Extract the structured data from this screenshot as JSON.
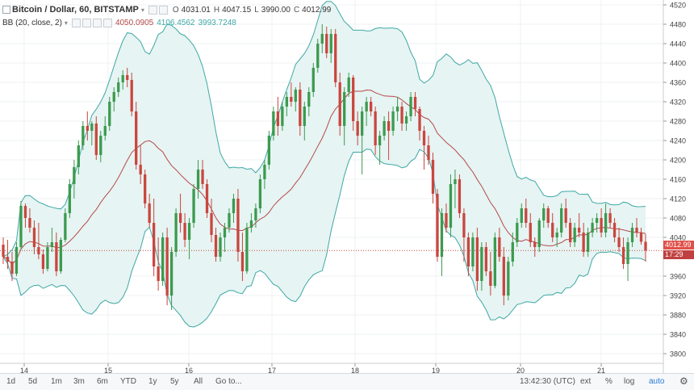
{
  "chart_data": {
    "type": "candlestick",
    "title": "Bitcoin / Dollar, 60, BITSTAMP",
    "ohlc": {
      "o": "4031.01",
      "h": "4047.15",
      "l": "3990.00",
      "c": "4012.99"
    },
    "indicator": {
      "name": "BB (20, close, 2)",
      "values": [
        "4050.0905",
        "4106.4562",
        "3993.7248"
      ]
    },
    "y_ticks": [
      4520,
      4480,
      4440,
      4400,
      4360,
      4320,
      4280,
      4240,
      4200,
      4160,
      4120,
      4080,
      4040,
      3960,
      3920,
      3880,
      3840,
      3800
    ],
    "ylim": [
      3780,
      4530
    ],
    "x_ticks": [
      "14",
      "15",
      "16",
      "17",
      "18",
      "19",
      "20",
      "21"
    ],
    "last_price": "4012.99",
    "countdown": "17:29",
    "candles": [
      [
        4025,
        4040,
        3985,
        4000
      ],
      [
        4000,
        4035,
        3975,
        3990
      ],
      [
        3990,
        4010,
        3950,
        3965
      ],
      [
        3965,
        4030,
        3960,
        4020
      ],
      [
        4020,
        4115,
        4015,
        4105
      ],
      [
        4105,
        4110,
        4060,
        4080
      ],
      [
        4080,
        4100,
        4050,
        4060
      ],
      [
        4060,
        4075,
        4005,
        4020
      ],
      [
        4020,
        4070,
        3995,
        4005
      ],
      [
        4005,
        4015,
        3965,
        3975
      ],
      [
        3975,
        4030,
        3970,
        4020
      ],
      [
        4020,
        4060,
        4010,
        4030
      ],
      [
        4030,
        4050,
        3960,
        3970
      ],
      [
        3970,
        4040,
        3965,
        4035
      ],
      [
        4035,
        4100,
        4030,
        4090
      ],
      [
        4090,
        4160,
        4080,
        4150
      ],
      [
        4150,
        4200,
        4120,
        4185
      ],
      [
        4185,
        4240,
        4170,
        4230
      ],
      [
        4230,
        4280,
        4220,
        4270
      ],
      [
        4270,
        4300,
        4240,
        4260
      ],
      [
        4260,
        4280,
        4230,
        4275
      ],
      [
        4275,
        4290,
        4200,
        4210
      ],
      [
        4210,
        4260,
        4195,
        4250
      ],
      [
        4250,
        4290,
        4240,
        4270
      ],
      [
        4270,
        4330,
        4260,
        4320
      ],
      [
        4320,
        4350,
        4300,
        4340
      ],
      [
        4340,
        4370,
        4330,
        4360
      ],
      [
        4360,
        4385,
        4345,
        4375
      ],
      [
        4375,
        4390,
        4350,
        4365
      ],
      [
        4365,
        4380,
        4290,
        4300
      ],
      [
        4300,
        4320,
        4180,
        4190
      ],
      [
        4190,
        4230,
        4150,
        4170
      ],
      [
        4170,
        4180,
        4100,
        4110
      ],
      [
        4110,
        4130,
        4060,
        4070
      ],
      [
        4070,
        4120,
        3960,
        3980
      ],
      [
        3980,
        4040,
        3930,
        3950
      ],
      [
        3950,
        4050,
        3940,
        4040
      ],
      [
        4040,
        4060,
        3900,
        3920
      ],
      [
        3920,
        4020,
        3890,
        4010
      ],
      [
        4010,
        4100,
        4000,
        4090
      ],
      [
        4090,
        4130,
        4050,
        4070
      ],
      [
        4070,
        4090,
        4020,
        4035
      ],
      [
        4035,
        4080,
        3995,
        4070
      ],
      [
        4070,
        4150,
        4060,
        4140
      ],
      [
        4140,
        4200,
        4120,
        4180
      ],
      [
        4180,
        4200,
        4140,
        4150
      ],
      [
        4150,
        4160,
        4080,
        4090
      ],
      [
        4090,
        4120,
        4030,
        4045
      ],
      [
        4045,
        4060,
        3990,
        4000
      ],
      [
        4000,
        4050,
        3990,
        4040
      ],
      [
        4040,
        4070,
        4010,
        4060
      ],
      [
        4060,
        4100,
        4050,
        4090
      ],
      [
        4090,
        4130,
        4070,
        4120
      ],
      [
        4120,
        4140,
        3990,
        4010
      ],
      [
        4010,
        4050,
        3950,
        3970
      ],
      [
        3970,
        4070,
        3965,
        4060
      ],
      [
        4060,
        4090,
        4050,
        4075
      ],
      [
        4075,
        4110,
        4060,
        4100
      ],
      [
        4100,
        4170,
        4090,
        4160
      ],
      [
        4160,
        4200,
        4140,
        4190
      ],
      [
        4190,
        4260,
        4180,
        4250
      ],
      [
        4250,
        4310,
        4240,
        4300
      ],
      [
        4300,
        4330,
        4250,
        4270
      ],
      [
        4270,
        4320,
        4260,
        4310
      ],
      [
        4310,
        4340,
        4290,
        4330
      ],
      [
        4330,
        4360,
        4310,
        4320
      ],
      [
        4320,
        4350,
        4300,
        4345
      ],
      [
        4345,
        4360,
        4250,
        4270
      ],
      [
        4270,
        4320,
        4240,
        4310
      ],
      [
        4310,
        4350,
        4290,
        4340
      ],
      [
        4340,
        4400,
        4330,
        4390
      ],
      [
        4390,
        4450,
        4380,
        4440
      ],
      [
        4440,
        4480,
        4420,
        4460
      ],
      [
        4460,
        4475,
        4410,
        4420
      ],
      [
        4420,
        4470,
        4400,
        4460
      ],
      [
        4460,
        4470,
        4350,
        4360
      ],
      [
        4360,
        4380,
        4250,
        4270
      ],
      [
        4270,
        4350,
        4230,
        4340
      ],
      [
        4340,
        4380,
        4330,
        4370
      ],
      [
        4370,
        4375,
        4260,
        4280
      ],
      [
        4280,
        4300,
        4230,
        4250
      ],
      [
        4250,
        4310,
        4170,
        4300
      ],
      [
        4300,
        4330,
        4270,
        4320
      ],
      [
        4320,
        4330,
        4290,
        4300
      ],
      [
        4300,
        4310,
        4210,
        4230
      ],
      [
        4230,
        4260,
        4190,
        4250
      ],
      [
        4250,
        4290,
        4240,
        4280
      ],
      [
        4280,
        4300,
        4200,
        4260
      ],
      [
        4260,
        4310,
        4250,
        4300
      ],
      [
        4300,
        4330,
        4280,
        4310
      ],
      [
        4310,
        4320,
        4260,
        4275
      ],
      [
        4275,
        4300,
        4260,
        4290
      ],
      [
        4290,
        4340,
        4280,
        4330
      ],
      [
        4330,
        4340,
        4290,
        4305
      ],
      [
        4305,
        4310,
        4240,
        4260
      ],
      [
        4260,
        4270,
        4180,
        4230
      ],
      [
        4230,
        4250,
        4190,
        4200
      ],
      [
        4200,
        4215,
        4110,
        4130
      ],
      [
        4130,
        4140,
        3990,
        4000
      ],
      [
        4000,
        4100,
        3960,
        4090
      ],
      [
        4090,
        4110,
        4050,
        4060
      ],
      [
        4060,
        4170,
        4040,
        4150
      ],
      [
        4150,
        4180,
        4100,
        4160
      ],
      [
        4160,
        4170,
        4080,
        4090
      ],
      [
        4090,
        4100,
        3990,
        4040
      ],
      [
        4040,
        4050,
        3960,
        3980
      ],
      [
        3980,
        4050,
        3970,
        4040
      ],
      [
        4040,
        4060,
        3930,
        3950
      ],
      [
        3950,
        4030,
        3930,
        4020
      ],
      [
        4020,
        4030,
        3960,
        3970
      ],
      [
        3970,
        4010,
        3920,
        3940
      ],
      [
        3940,
        4050,
        3935,
        4040
      ],
      [
        4040,
        4060,
        3990,
        4000
      ],
      [
        4000,
        4020,
        3900,
        3920
      ],
      [
        3920,
        4000,
        3910,
        3990
      ],
      [
        3990,
        4050,
        3980,
        4030
      ],
      [
        4030,
        4080,
        4020,
        4070
      ],
      [
        4070,
        4110,
        4060,
        4100
      ],
      [
        4100,
        4120,
        4060,
        4070
      ],
      [
        4070,
        4090,
        4020,
        4030
      ],
      [
        4030,
        4040,
        4000,
        4020
      ],
      [
        4020,
        4080,
        4010,
        4075
      ],
      [
        4075,
        4110,
        4060,
        4100
      ],
      [
        4100,
        4105,
        4060,
        4070
      ],
      [
        4070,
        4090,
        4030,
        4040
      ],
      [
        4040,
        4060,
        4020,
        4050
      ],
      [
        4050,
        4110,
        4040,
        4100
      ],
      [
        4100,
        4120,
        4060,
        4070
      ],
      [
        4070,
        4080,
        4020,
        4030
      ],
      [
        4030,
        4070,
        4020,
        4060
      ],
      [
        4060,
        4090,
        4040,
        4050
      ],
      [
        4050,
        4070,
        4000,
        4010
      ],
      [
        4010,
        4060,
        4000,
        4050
      ],
      [
        4050,
        4080,
        4040,
        4070
      ],
      [
        4070,
        4090,
        4050,
        4080
      ],
      [
        4080,
        4100,
        4040,
        4050
      ],
      [
        4050,
        4110,
        4040,
        4090
      ],
      [
        4090,
        4100,
        4060,
        4070
      ],
      [
        4070,
        4080,
        4030,
        4040
      ],
      [
        4040,
        4060,
        4010,
        4020
      ],
      [
        4020,
        4040,
        3975,
        3985
      ],
      [
        3985,
        4040,
        3950,
        4030
      ],
      [
        4030,
        4070,
        4020,
        4060
      ],
      [
        4060,
        4080,
        4040,
        4050
      ],
      [
        4050,
        4060,
        4025,
        4031
      ],
      [
        4031,
        4047,
        3990,
        4012.99
      ]
    ]
  },
  "toolbar": {
    "ranges": [
      "1d",
      "5d",
      "1m",
      "3m",
      "6m",
      "YTD",
      "1y",
      "5y",
      "All",
      "Go to..."
    ],
    "time": "13:42:30 (UTC)",
    "right_buttons": [
      "ext",
      "%",
      "log",
      "auto"
    ]
  },
  "colors": {
    "up": "#3c9a4f",
    "down": "#c9463f",
    "band_fill": "#e6f4f3",
    "band_line": "#3ea8a5",
    "basis": "#b5494a",
    "price_label": "#e0504a",
    "countdown_label": "#c04040"
  },
  "icons": [
    "collapse-icon",
    "gear-icon"
  ]
}
